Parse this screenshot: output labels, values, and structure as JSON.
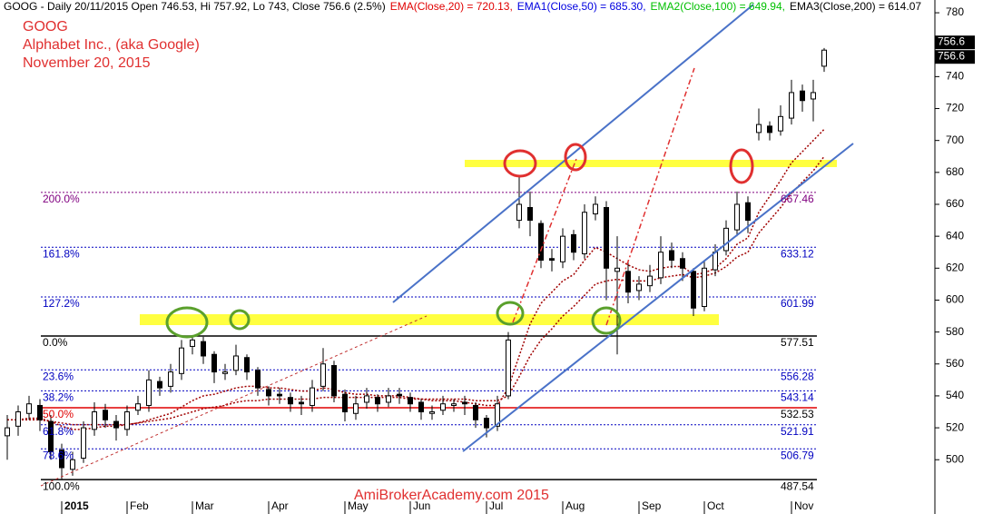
{
  "chart_data": {
    "type": "candlestick",
    "header": [
      {
        "text": "GOOG - Daily 20/11/2015 Open 746.53, Hi 757.92, Lo 743, Close 756.6 (2.5%)",
        "color": "#000000"
      },
      {
        "text": "EMA(Close,20) = 720.13,",
        "color": "#e00000"
      },
      {
        "text": "EMA1(Close,50) = 685.30,",
        "color": "#0000e0"
      },
      {
        "text": "EMA2(Close,100) = 649.94,",
        "color": "#00c000"
      },
      {
        "text": "EMA3(Close,200) = 614.07",
        "color": "#000000"
      }
    ],
    "annotations": [
      "GOOG",
      "Alphabet Inc., (aka Google)",
      "November 20, 2015"
    ],
    "watermark": "AmiBrokerAcademy.com 2015",
    "price_tags": [
      "756.6",
      "756.6"
    ],
    "categories": [
      null,
      null,
      null,
      null,
      null,
      "2015",
      null,
      null,
      null,
      null,
      null,
      "Feb",
      null,
      null,
      null,
      null,
      null,
      "Mar",
      null,
      null,
      null,
      null,
      null,
      null,
      "Apr",
      null,
      null,
      null,
      null,
      null,
      null,
      "May",
      null,
      null,
      null,
      null,
      null,
      "Jun",
      null,
      null,
      null,
      null,
      null,
      null,
      "Jul",
      null,
      null,
      null,
      null,
      null,
      null,
      "Aug",
      null,
      null,
      null,
      null,
      null,
      null,
      "Sep",
      null,
      null,
      null,
      null,
      null,
      "Oct",
      null,
      null,
      null,
      null,
      null,
      null,
      null,
      "Nov",
      null,
      null,
      null
    ],
    "open": [
      515,
      521,
      529,
      534,
      524,
      506,
      494,
      501,
      519,
      531,
      524,
      519,
      531,
      534,
      549,
      546,
      554,
      571,
      574,
      566,
      554,
      556,
      564,
      556,
      544,
      541,
      539,
      536,
      534,
      546,
      559,
      541,
      529,
      536,
      539,
      536,
      541,
      539,
      536,
      529,
      531,
      534,
      536,
      534,
      526,
      521,
      540,
      650,
      658,
      648,
      626,
      624,
      641,
      629,
      654,
      658,
      618,
      618,
      606,
      609,
      614,
      631,
      626,
      618,
      596,
      619,
      631,
      644,
      661,
      705,
      709,
      706,
      714,
      731,
      726,
      746.53
    ],
    "high": [
      528,
      534,
      540,
      538,
      528,
      510,
      505,
      524,
      536,
      535,
      528,
      534,
      540,
      556,
      552,
      560,
      575,
      578,
      577,
      568,
      560,
      572,
      566,
      558,
      546,
      545,
      542,
      540,
      550,
      570,
      562,
      544,
      540,
      545,
      541,
      545,
      545,
      542,
      538,
      534,
      540,
      538,
      540,
      536,
      528,
      540,
      580,
      678,
      668,
      650,
      632,
      645,
      644,
      660,
      665,
      662,
      640,
      625,
      615,
      622,
      640,
      636,
      630,
      620,
      625,
      635,
      650,
      668,
      665,
      720,
      712,
      722,
      738,
      735,
      738,
      757.92
    ],
    "low": [
      500,
      515,
      525,
      518,
      500,
      488,
      490,
      498,
      515,
      520,
      512,
      515,
      528,
      530,
      540,
      542,
      550,
      566,
      560,
      548,
      550,
      553,
      550,
      540,
      534,
      535,
      530,
      528,
      530,
      543,
      536,
      524,
      525,
      532,
      530,
      533,
      535,
      530,
      525,
      525,
      528,
      530,
      528,
      520,
      514,
      518,
      538,
      645,
      640,
      620,
      618,
      620,
      625,
      626,
      650,
      600,
      566,
      598,
      600,
      605,
      610,
      620,
      612,
      590,
      593,
      615,
      628,
      640,
      642,
      700,
      700,
      703,
      710,
      718,
      712,
      743
    ],
    "close": [
      520,
      530,
      535,
      525,
      505,
      495,
      500,
      520,
      530,
      525,
      520,
      530,
      535,
      550,
      545,
      555,
      570,
      575,
      565,
      555,
      555,
      565,
      555,
      545,
      540,
      540,
      535,
      535,
      545,
      560,
      540,
      530,
      535,
      540,
      535,
      540,
      540,
      535,
      530,
      530,
      535,
      535,
      535,
      525,
      520,
      535,
      575,
      660,
      650,
      625,
      625,
      640,
      630,
      655,
      660,
      620,
      620,
      605,
      610,
      615,
      630,
      625,
      620,
      595,
      620,
      630,
      645,
      660,
      650,
      710,
      705,
      715,
      730,
      725,
      730,
      756.6
    ],
    "color_up": "#ffffff",
    "color_down": "#000000",
    "overlays": [
      {
        "color": "#a00000",
        "values": [
          525,
          525,
          526,
          526,
          524,
          521,
          519,
          519,
          520,
          521,
          521,
          522,
          523,
          525,
          527,
          529,
          533,
          537,
          540,
          541,
          543,
          545,
          546,
          546,
          545,
          545,
          544,
          543,
          543,
          545,
          544,
          542,
          541,
          541,
          540,
          540,
          540,
          539,
          538,
          537,
          537,
          537,
          536,
          535,
          534,
          534,
          545,
          565,
          585,
          598,
          605,
          612,
          616,
          625,
          633,
          630,
          626,
          622,
          619,
          618,
          620,
          621,
          621,
          616,
          617,
          620,
          626,
          635,
          639,
          655,
          665,
          675,
          686,
          693,
          700,
          707
        ]
      },
      {
        "color": "#a00000",
        "values": [
          525,
          525,
          525,
          525,
          524,
          523,
          522,
          522,
          522,
          522,
          522,
          522,
          523,
          524,
          525,
          526,
          528,
          530,
          532,
          533,
          534,
          536,
          537,
          537,
          538,
          538,
          538,
          538,
          538,
          539,
          539,
          539,
          539,
          539,
          539,
          539,
          539,
          538,
          538,
          538,
          538,
          538,
          538,
          537,
          537,
          537,
          540,
          552,
          565,
          575,
          582,
          590,
          596,
          603,
          610,
          612,
          613,
          612,
          612,
          612,
          614,
          615,
          616,
          614,
          615,
          617,
          621,
          627,
          630,
          642,
          650,
          658,
          667,
          674,
          681,
          690
        ]
      }
    ],
    "fib_levels": [
      {
        "label": "200.0%",
        "value": 667.46,
        "value_label": "667.46",
        "color": "#800080"
      },
      {
        "label": "161.8%",
        "value": 633.12,
        "value_label": "633.12",
        "color": "#0000c0"
      },
      {
        "label": "127.2%",
        "value": 601.99,
        "value_label": "601.99",
        "color": "#0000c0"
      },
      {
        "label": "0.0%",
        "value": 577.51,
        "value_label": "577.51",
        "color": "#000000"
      },
      {
        "label": "23.6%",
        "value": 556.28,
        "value_label": "556.28",
        "color": "#0000c0"
      },
      {
        "label": "38.2%",
        "value": 543.14,
        "value_label": "543.14",
        "color": "#0000c0"
      },
      {
        "label": "50.0%",
        "value": 532.53,
        "value_label": "532.53",
        "color": "#e00000"
      },
      {
        "label": "61.8%",
        "value": 521.91,
        "value_label": "521.91",
        "color": "#0000c0"
      },
      {
        "label": "78.6%",
        "value": 506.79,
        "value_label": "506.79",
        "color": "#0000c0"
      },
      {
        "label": "100.0%",
        "value": 487.54,
        "value_label": "487.54",
        "color": "#000000"
      }
    ],
    "ylim": [
      466,
      788
    ],
    "yticks": [
      500,
      520,
      540,
      560,
      580,
      600,
      620,
      640,
      660,
      680,
      700,
      720,
      740,
      760,
      780
    ]
  }
}
